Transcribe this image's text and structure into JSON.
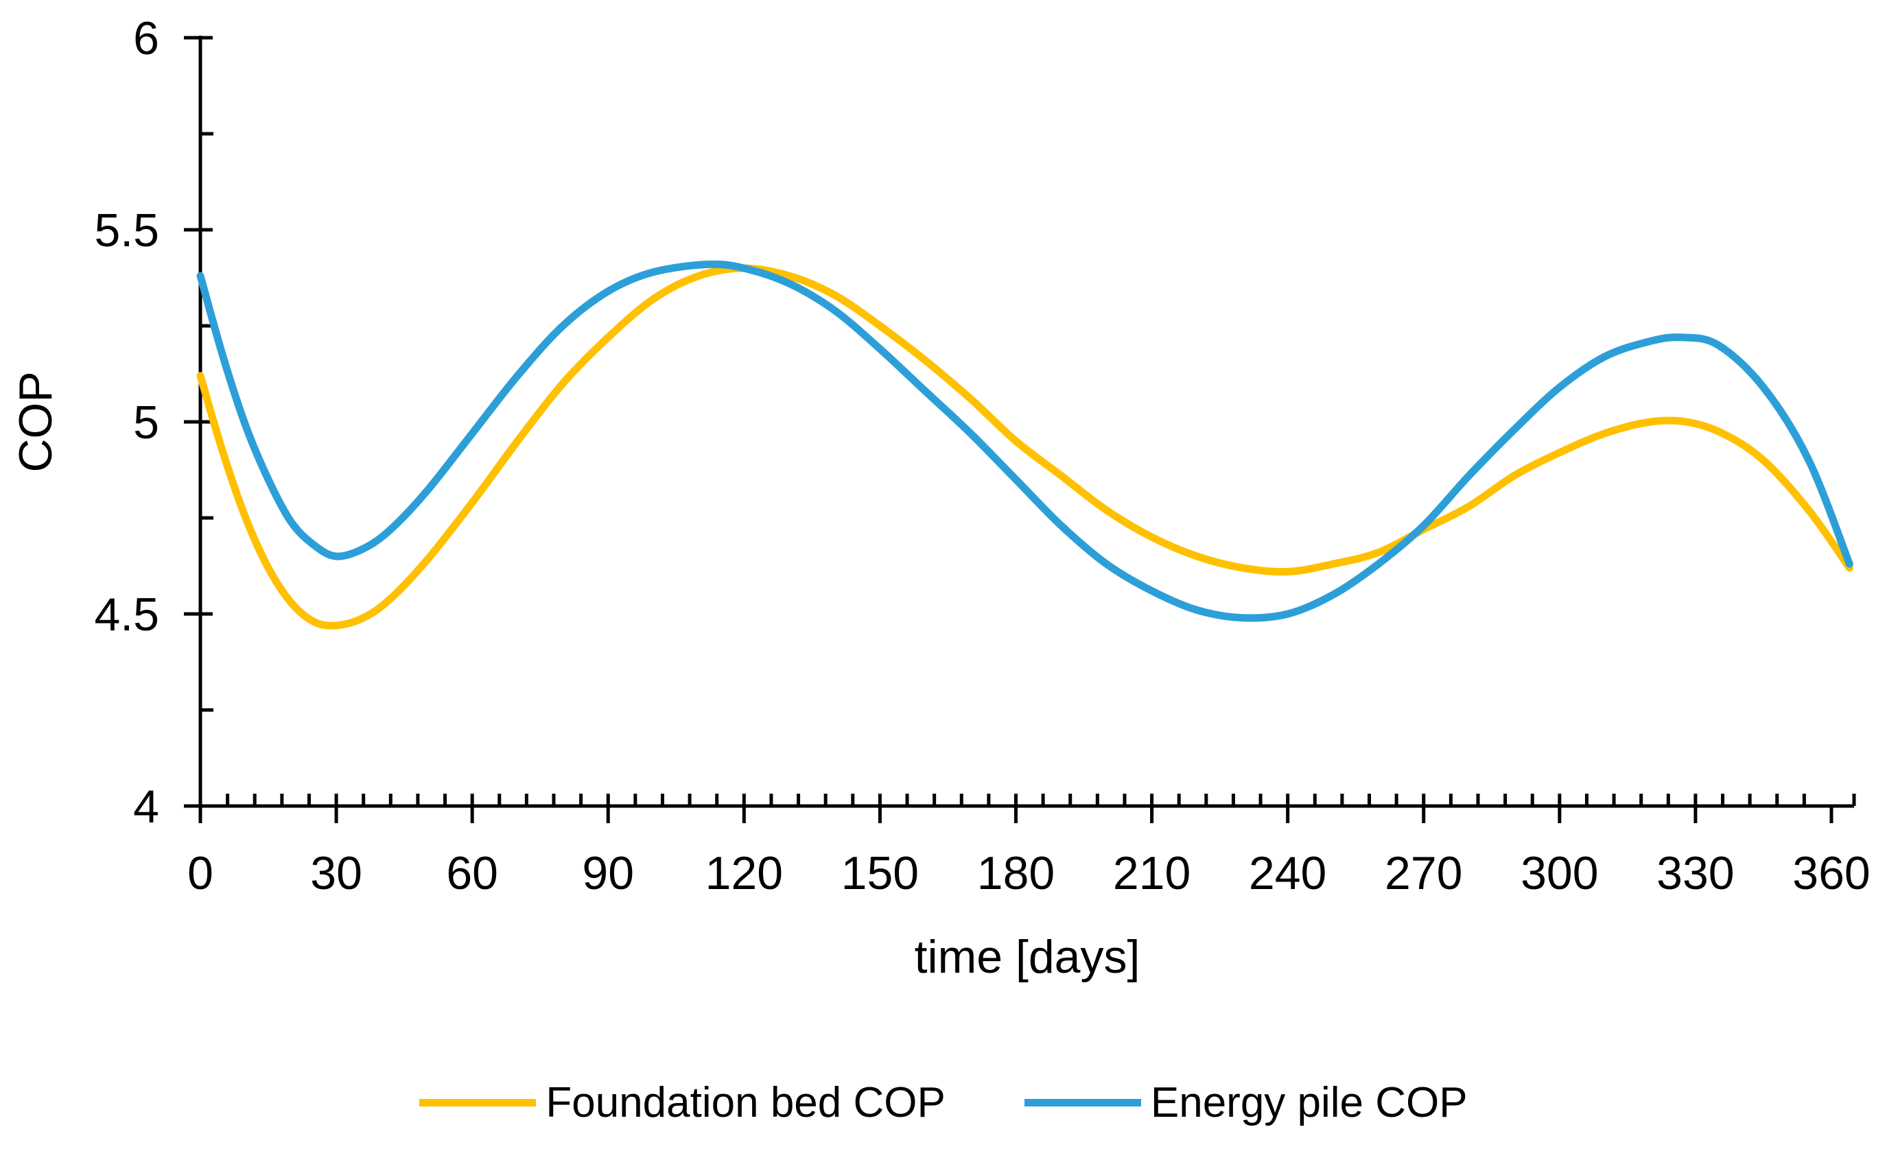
{
  "chart_data": {
    "type": "line",
    "xlabel": "time [days]",
    "ylabel": "COP",
    "xlim": [
      0,
      365
    ],
    "ylim": [
      4,
      6
    ],
    "x_major_ticks": [
      0,
      30,
      60,
      90,
      120,
      150,
      180,
      210,
      240,
      270,
      300,
      330,
      360
    ],
    "x_tick_labels": [
      "0",
      "30",
      "60",
      "90",
      "120",
      "150",
      "180",
      "210",
      "240",
      "270",
      "300",
      "330",
      "360"
    ],
    "x_minor_unit": 6,
    "y_major_ticks": [
      4,
      4.5,
      5,
      5.5,
      6
    ],
    "y_tick_labels": [
      "4",
      "4.5",
      "5",
      "5.5",
      "6"
    ],
    "y_minor_unit": 0.25,
    "grid": false,
    "legend_position": "bottom",
    "axis_color": "#000000",
    "series": [
      {
        "name": "Foundation bed COP",
        "color": "#FFC000",
        "points": [
          [
            0,
            5.12
          ],
          [
            5,
            4.92
          ],
          [
            10,
            4.75
          ],
          [
            15,
            4.62
          ],
          [
            20,
            4.53
          ],
          [
            25,
            4.48
          ],
          [
            30,
            4.47
          ],
          [
            36,
            4.49
          ],
          [
            42,
            4.54
          ],
          [
            50,
            4.64
          ],
          [
            60,
            4.79
          ],
          [
            70,
            4.95
          ],
          [
            80,
            5.1
          ],
          [
            90,
            5.22
          ],
          [
            100,
            5.32
          ],
          [
            110,
            5.38
          ],
          [
            120,
            5.4
          ],
          [
            130,
            5.38
          ],
          [
            140,
            5.33
          ],
          [
            150,
            5.25
          ],
          [
            160,
            5.16
          ],
          [
            170,
            5.06
          ],
          [
            180,
            4.95
          ],
          [
            190,
            4.86
          ],
          [
            200,
            4.77
          ],
          [
            210,
            4.7
          ],
          [
            220,
            4.65
          ],
          [
            230,
            4.62
          ],
          [
            240,
            4.61
          ],
          [
            250,
            4.63
          ],
          [
            260,
            4.66
          ],
          [
            270,
            4.72
          ],
          [
            280,
            4.78
          ],
          [
            290,
            4.86
          ],
          [
            300,
            4.92
          ],
          [
            310,
            4.97
          ],
          [
            320,
            5.0
          ],
          [
            328,
            5.0
          ],
          [
            336,
            4.97
          ],
          [
            345,
            4.9
          ],
          [
            355,
            4.77
          ],
          [
            364,
            4.62
          ]
        ]
      },
      {
        "name": "Energy pile COP",
        "color": "#2D9FD8",
        "points": [
          [
            0,
            5.38
          ],
          [
            5,
            5.17
          ],
          [
            10,
            4.99
          ],
          [
            15,
            4.85
          ],
          [
            20,
            4.74
          ],
          [
            25,
            4.68
          ],
          [
            30,
            4.65
          ],
          [
            36,
            4.67
          ],
          [
            42,
            4.72
          ],
          [
            50,
            4.82
          ],
          [
            60,
            4.97
          ],
          [
            70,
            5.12
          ],
          [
            80,
            5.25
          ],
          [
            90,
            5.34
          ],
          [
            100,
            5.39
          ],
          [
            112,
            5.41
          ],
          [
            120,
            5.4
          ],
          [
            130,
            5.36
          ],
          [
            140,
            5.29
          ],
          [
            150,
            5.19
          ],
          [
            160,
            5.08
          ],
          [
            170,
            4.97
          ],
          [
            180,
            4.85
          ],
          [
            190,
            4.73
          ],
          [
            200,
            4.63
          ],
          [
            210,
            4.56
          ],
          [
            220,
            4.51
          ],
          [
            230,
            4.49
          ],
          [
            240,
            4.5
          ],
          [
            250,
            4.55
          ],
          [
            260,
            4.63
          ],
          [
            270,
            4.73
          ],
          [
            280,
            4.86
          ],
          [
            290,
            4.98
          ],
          [
            300,
            5.09
          ],
          [
            310,
            5.17
          ],
          [
            320,
            5.21
          ],
          [
            327,
            5.22
          ],
          [
            335,
            5.2
          ],
          [
            345,
            5.09
          ],
          [
            355,
            4.9
          ],
          [
            364,
            4.63
          ]
        ]
      }
    ]
  }
}
